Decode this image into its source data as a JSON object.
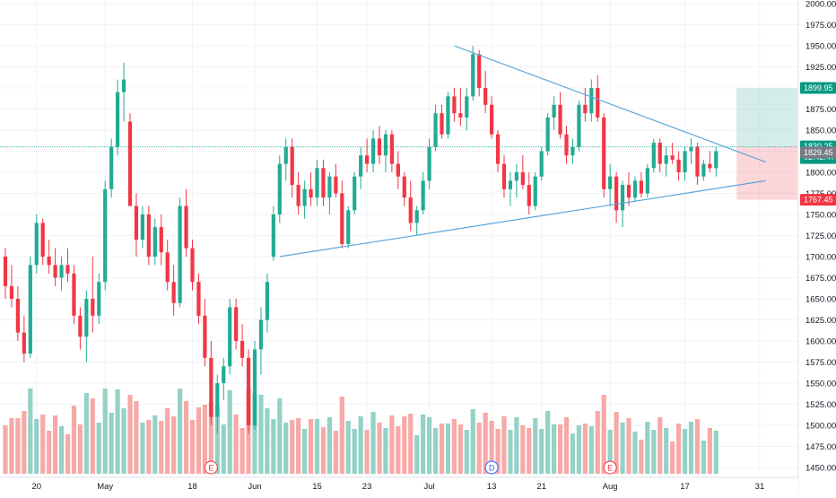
{
  "chart_data": {
    "type": "candlestick",
    "title": "",
    "xlabel": "",
    "ylabel": "",
    "ylim": [
      1437,
      2005
    ],
    "grid": true,
    "y_ticks": [
      1450,
      1475,
      1500,
      1525,
      1550,
      1575,
      1600,
      1625,
      1650,
      1675,
      1700,
      1725,
      1750,
      1775,
      1800,
      1825,
      1850,
      1875,
      1900,
      1925,
      1950,
      1975,
      2000
    ],
    "y_tick_labels": [
      "1450.00",
      "1475.00",
      "1500.00",
      "1525.00",
      "1550.00",
      "1575.00",
      "1600.00",
      "1625.00",
      "1650.00",
      "1675.00",
      "1700.00",
      "1725.00",
      "1750.00",
      "1775.00",
      "1800.00",
      "1825.00",
      "1850.00",
      "1875.00",
      "1900.00",
      "1925.00",
      "1950.00",
      "1975.00",
      "2000.00"
    ],
    "x_tick_labels": [
      {
        "label": "20",
        "bar": 5
      },
      {
        "label": "May",
        "bar": 16
      },
      {
        "label": "18",
        "bar": 30
      },
      {
        "label": "Jun",
        "bar": 40
      },
      {
        "label": "15",
        "bar": 50
      },
      {
        "label": "23",
        "bar": 58
      },
      {
        "label": "Jul",
        "bar": 68
      },
      {
        "label": "13",
        "bar": 78
      },
      {
        "label": "21",
        "bar": 86
      },
      {
        "label": "Aug",
        "bar": 97
      },
      {
        "label": "17",
        "bar": 109
      },
      {
        "label": "31",
        "bar": 121
      }
    ],
    "candles": [
      [
        1700,
        1710,
        1650,
        1665
      ],
      [
        1665,
        1690,
        1640,
        1650
      ],
      [
        1650,
        1665,
        1600,
        1610
      ],
      [
        1610,
        1630,
        1575,
        1585
      ],
      [
        1585,
        1700,
        1580,
        1690
      ],
      [
        1690,
        1750,
        1680,
        1740
      ],
      [
        1740,
        1745,
        1690,
        1700
      ],
      [
        1700,
        1720,
        1680,
        1690
      ],
      [
        1690,
        1710,
        1665,
        1675
      ],
      [
        1675,
        1700,
        1660,
        1690
      ],
      [
        1690,
        1710,
        1670,
        1680
      ],
      [
        1680,
        1690,
        1620,
        1630
      ],
      [
        1630,
        1640,
        1590,
        1605
      ],
      [
        1605,
        1660,
        1575,
        1650
      ],
      [
        1650,
        1700,
        1610,
        1630
      ],
      [
        1630,
        1680,
        1620,
        1670
      ],
      [
        1670,
        1790,
        1660,
        1780
      ],
      [
        1780,
        1840,
        1770,
        1830
      ],
      [
        1830,
        1910,
        1820,
        1895
      ],
      [
        1895,
        1930,
        1860,
        1910
      ],
      [
        1860,
        1870,
        1760,
        1760
      ],
      [
        1760,
        1775,
        1700,
        1720
      ],
      [
        1720,
        1760,
        1710,
        1750
      ],
      [
        1750,
        1760,
        1690,
        1700
      ],
      [
        1700,
        1745,
        1690,
        1735
      ],
      [
        1735,
        1750,
        1690,
        1705
      ],
      [
        1705,
        1720,
        1660,
        1670
      ],
      [
        1670,
        1690,
        1630,
        1645
      ],
      [
        1645,
        1770,
        1640,
        1760
      ],
      [
        1760,
        1780,
        1700,
        1710
      ],
      [
        1710,
        1720,
        1660,
        1670
      ],
      [
        1670,
        1680,
        1620,
        1630
      ],
      [
        1630,
        1650,
        1570,
        1580
      ],
      [
        1580,
        1600,
        1500,
        1510
      ],
      [
        1510,
        1560,
        1490,
        1550
      ],
      [
        1550,
        1580,
        1530,
        1570
      ],
      [
        1570,
        1650,
        1560,
        1640
      ],
      [
        1640,
        1650,
        1590,
        1600
      ],
      [
        1600,
        1620,
        1570,
        1580
      ],
      [
        1580,
        1590,
        1490,
        1500
      ],
      [
        1500,
        1600,
        1495,
        1590
      ],
      [
        1590,
        1640,
        1560,
        1625
      ],
      [
        1625,
        1680,
        1610,
        1670
      ],
      [
        1700,
        1760,
        1695,
        1750
      ],
      [
        1750,
        1820,
        1740,
        1810
      ],
      [
        1810,
        1840,
        1790,
        1830
      ],
      [
        1830,
        1840,
        1770,
        1785
      ],
      [
        1785,
        1800,
        1750,
        1760
      ],
      [
        1760,
        1790,
        1745,
        1780
      ],
      [
        1780,
        1800,
        1760,
        1770
      ],
      [
        1770,
        1815,
        1760,
        1805
      ],
      [
        1805,
        1815,
        1760,
        1770
      ],
      [
        1770,
        1800,
        1750,
        1795
      ],
      [
        1795,
        1810,
        1770,
        1775
      ],
      [
        1775,
        1790,
        1710,
        1715
      ],
      [
        1715,
        1760,
        1710,
        1755
      ],
      [
        1755,
        1800,
        1750,
        1795
      ],
      [
        1795,
        1830,
        1780,
        1820
      ],
      [
        1820,
        1840,
        1800,
        1810
      ],
      [
        1810,
        1850,
        1800,
        1840
      ],
      [
        1840,
        1855,
        1810,
        1820
      ],
      [
        1820,
        1850,
        1800,
        1845
      ],
      [
        1845,
        1850,
        1800,
        1810
      ],
      [
        1810,
        1825,
        1780,
        1795
      ],
      [
        1795,
        1800,
        1760,
        1770
      ],
      [
        1770,
        1790,
        1730,
        1740
      ],
      [
        1740,
        1760,
        1725,
        1755
      ],
      [
        1755,
        1800,
        1750,
        1790
      ],
      [
        1790,
        1840,
        1780,
        1830
      ],
      [
        1830,
        1880,
        1825,
        1870
      ],
      [
        1870,
        1880,
        1840,
        1845
      ],
      [
        1845,
        1895,
        1840,
        1890
      ],
      [
        1890,
        1900,
        1860,
        1870
      ],
      [
        1870,
        1900,
        1855,
        1865
      ],
      [
        1865,
        1900,
        1850,
        1890
      ],
      [
        1890,
        1950,
        1885,
        1940
      ],
      [
        1940,
        1945,
        1890,
        1900
      ],
      [
        1900,
        1920,
        1870,
        1880
      ],
      [
        1880,
        1890,
        1840,
        1845
      ],
      [
        1845,
        1850,
        1800,
        1810
      ],
      [
        1810,
        1820,
        1770,
        1780
      ],
      [
        1780,
        1800,
        1760,
        1790
      ],
      [
        1790,
        1810,
        1770,
        1800
      ],
      [
        1800,
        1820,
        1780,
        1785
      ],
      [
        1785,
        1800,
        1750,
        1760
      ],
      [
        1760,
        1800,
        1755,
        1795
      ],
      [
        1795,
        1830,
        1790,
        1825
      ],
      [
        1825,
        1870,
        1820,
        1865
      ],
      [
        1865,
        1890,
        1850,
        1880
      ],
      [
        1880,
        1895,
        1840,
        1845
      ],
      [
        1845,
        1855,
        1810,
        1820
      ],
      [
        1820,
        1840,
        1810,
        1830
      ],
      [
        1830,
        1885,
        1825,
        1880
      ],
      [
        1880,
        1900,
        1860,
        1870
      ],
      [
        1870,
        1910,
        1860,
        1900
      ],
      [
        1900,
        1915,
        1860,
        1865
      ],
      [
        1865,
        1870,
        1770,
        1780
      ],
      [
        1780,
        1810,
        1760,
        1795
      ],
      [
        1795,
        1800,
        1740,
        1755
      ],
      [
        1755,
        1790,
        1735,
        1785
      ],
      [
        1785,
        1800,
        1760,
        1770
      ],
      [
        1770,
        1795,
        1765,
        1790
      ],
      [
        1790,
        1800,
        1770,
        1775
      ],
      [
        1775,
        1810,
        1770,
        1805
      ],
      [
        1805,
        1840,
        1800,
        1835
      ],
      [
        1835,
        1840,
        1800,
        1810
      ],
      [
        1810,
        1830,
        1795,
        1820
      ],
      [
        1820,
        1835,
        1810,
        1815
      ],
      [
        1815,
        1825,
        1790,
        1800
      ],
      [
        1800,
        1830,
        1790,
        1825
      ],
      [
        1825,
        1840,
        1810,
        1830
      ],
      [
        1830,
        1835,
        1785,
        1795
      ],
      [
        1795,
        1815,
        1790,
        1810
      ],
      [
        1810,
        1825,
        1800,
        1805
      ],
      [
        1805,
        1830,
        1795,
        1825
      ]
    ],
    "volume_visible": true,
    "trendlines": [
      {
        "from": {
          "bar": 44,
          "price": 1700
        },
        "to": {
          "bar": 122,
          "price": 1790
        }
      },
      {
        "from": {
          "bar": 72,
          "price": 1950
        },
        "to": {
          "bar": 122,
          "price": 1812
        }
      }
    ],
    "position_tool": {
      "entry": 1830.25,
      "target": 1899.95,
      "stop": 1767.45,
      "start_bar": 117,
      "end_bar": 124
    },
    "price_labels": [
      {
        "value": 1899.95,
        "text": "1899.95",
        "color": "#089981"
      },
      {
        "value": 1830.25,
        "text": "1830.25",
        "color": "#089981"
      },
      {
        "value": 1829.45,
        "text": "1829.45",
        "color": "#787b86"
      },
      {
        "value": 1767.45,
        "text": "1767.45",
        "color": "#f23645"
      }
    ],
    "countdown": "02:42:47",
    "event_markers": [
      {
        "label": "E",
        "bar": 33,
        "color": "#f23645"
      },
      {
        "label": "D",
        "bar": 78,
        "color": "#2962ff"
      },
      {
        "label": "E",
        "bar": 97,
        "color": "#f23645"
      }
    ]
  },
  "colors": {
    "up": "#22ab94",
    "down": "#f23645",
    "up_volume": "#93d2c6",
    "down_volume": "#f7a9a7",
    "trendline": "#5aa6dc",
    "grid": "#f0f3fa",
    "axis_text": "#131722",
    "current_price_line": "#22ab94"
  }
}
